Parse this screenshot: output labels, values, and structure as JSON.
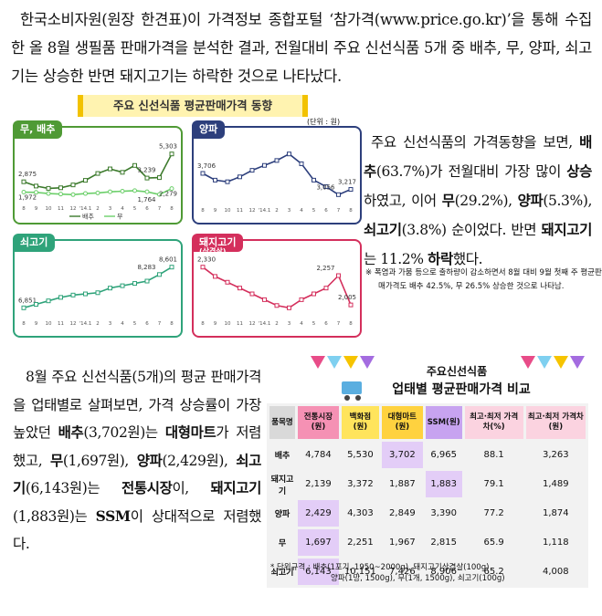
{
  "intro": "한국소비자원(원장 한견표)이 가격정보 종합포털 ‘참가격(www.price.go.kr)’을 통해 수집한 올 8월 생필품 판매가격을 분석한 결과, 전월대비 주요 신선식품 5개 중 배추, 무, 양파, 쇠고기는 상승한 반면 돼지고기는 하락한 것으로 나타났다.",
  "trend_panel": {
    "title": "주요 신선식품 평균판매가격 동향",
    "unit": "(단위 : 원)",
    "charts": [
      {
        "type": "line",
        "title": "무, 배추",
        "color": "#4f9a35",
        "legend": true,
        "categories": [
          "8",
          "9",
          "10",
          "11",
          "12",
          "'14.1",
          "2",
          "3",
          "4",
          "5",
          "6",
          "7",
          "8"
        ],
        "series": [
          {
            "name": "배추",
            "color": "#3c7a2c",
            "values": [
              2875,
              2500,
              2300,
              2350,
              2600,
              3000,
              3600,
              4000,
              3700,
              4300,
              3200,
              3239,
              5303
            ],
            "value_labels": [
              "2,875",
              null,
              null,
              null,
              null,
              null,
              null,
              null,
              null,
              null,
              null,
              "3,239",
              "5,303"
            ]
          },
          {
            "name": "무",
            "color": "#6ccf6a",
            "values": [
              1972,
              1950,
              1850,
              1800,
              1750,
              1850,
              1900,
              2000,
              2050,
              2100,
              2000,
              1764,
              2279
            ],
            "value_labels": [
              "1,972",
              null,
              null,
              null,
              null,
              null,
              null,
              null,
              null,
              null,
              null,
              "1,764",
              "2,279"
            ]
          }
        ]
      },
      {
        "type": "line",
        "title": "양파",
        "color": "#2d3f7c",
        "legend": false,
        "categories": [
          "8",
          "9",
          "10",
          "11",
          "12",
          "'14.1",
          "2",
          "3",
          "4",
          "5",
          "6",
          "7",
          "8"
        ],
        "series": [
          {
            "color": "#2d3f7c",
            "values": [
              3706,
              3500,
              3450,
              3600,
              3800,
              3950,
              4100,
              4300,
              4000,
              3500,
              3300,
              3056,
              3217
            ],
            "value_labels": [
              "3,706",
              null,
              null,
              null,
              null,
              null,
              null,
              null,
              null,
              null,
              null,
              "3,056",
              "3,217"
            ]
          }
        ]
      },
      {
        "type": "line",
        "title": "쇠고기",
        "color": "#2fa37a",
        "legend": false,
        "categories": [
          "8",
          "9",
          "10",
          "11",
          "12",
          "'14.1",
          "2",
          "3",
          "4",
          "5",
          "6",
          "7",
          "8"
        ],
        "series": [
          {
            "color": "#2fa37a",
            "values": [
              6851,
              7000,
              7150,
              7300,
              7400,
              7450,
              7500,
              7700,
              7800,
              7900,
              8000,
              8283,
              8601
            ],
            "value_labels": [
              "6,851",
              null,
              null,
              null,
              null,
              null,
              null,
              null,
              null,
              null,
              null,
              "8,283",
              "8,601"
            ]
          }
        ]
      },
      {
        "type": "line",
        "title": "돼지고기",
        "subtitle": "(삼겹살)",
        "color": "#d42f5c",
        "legend": false,
        "categories": [
          "8",
          "9",
          "10",
          "11",
          "12",
          "'14.1",
          "2",
          "3",
          "4",
          "5",
          "6",
          "7",
          "8"
        ],
        "series": [
          {
            "color": "#d42f5c",
            "values": [
              2330,
              2250,
              2200,
              2150,
              2100,
              2050,
              2000,
              1980,
              2050,
              2100,
              2150,
              2257,
              2005
            ],
            "value_labels": [
              "2,330",
              null,
              null,
              null,
              null,
              null,
              null,
              null,
              null,
              null,
              null,
              "2,257",
              "2,005"
            ]
          }
        ]
      }
    ]
  },
  "summary": {
    "runs": [
      {
        "text": "주요 신선식품의 가격동향을 보면, ",
        "bold": false
      },
      {
        "text": "배추",
        "bold": true
      },
      {
        "text": "(63.7%)가 전월대비 가장 많이 ",
        "bold": false
      },
      {
        "text": "상승",
        "bold": true
      },
      {
        "text": "하였고, 이어 ",
        "bold": false
      },
      {
        "text": "무",
        "bold": true
      },
      {
        "text": "(29.2%), ",
        "bold": false
      },
      {
        "text": "양파",
        "bold": true
      },
      {
        "text": "(5.3%), ",
        "bold": false
      },
      {
        "text": "쇠고기",
        "bold": true
      },
      {
        "text": "(3.8%) 순이었다. 반면 ",
        "bold": false
      },
      {
        "text": "돼지고기",
        "bold": true
      },
      {
        "text": "는 11.2% ",
        "bold": false
      },
      {
        "text": "하락",
        "bold": true
      },
      {
        "text": "했다.",
        "bold": false
      }
    ]
  },
  "note": "※ 폭염과 가뭄 등으로 출하량이 감소하면서 8월 대비 9월 첫째 주 평균판매가격도 배추 42.5%, 무 26.5% 상승한 것으로 나타남.",
  "channel_text": {
    "runs": [
      {
        "text": "8월 주요 신선식품(5개)의 평균 판매가격을 업태별로 살펴보면, 가격 상승률이 가장 높았던 ",
        "bold": false
      },
      {
        "text": "배추",
        "bold": true
      },
      {
        "text": "(3,702원)는 ",
        "bold": false
      },
      {
        "text": "대형마트",
        "bold": true
      },
      {
        "text": "가 저렴했고, ",
        "bold": false
      },
      {
        "text": "무",
        "bold": true
      },
      {
        "text": "(1,697원), ",
        "bold": false
      },
      {
        "text": "양파",
        "bold": true
      },
      {
        "text": "(2,429원), ",
        "bold": false
      },
      {
        "text": "쇠고기",
        "bold": true
      },
      {
        "text": "(6,143원)는 ",
        "bold": false
      },
      {
        "text": "전통시장",
        "bold": true
      },
      {
        "text": "이, ",
        "bold": false
      },
      {
        "text": "돼지고기",
        "bold": true
      },
      {
        "text": "(1,883원)는 ",
        "bold": false
      },
      {
        "text": "SSM",
        "bold": true
      },
      {
        "text": "이 상대적으로 저렴했다.",
        "bold": false
      }
    ]
  },
  "comparison": {
    "title_top": "주요신선식품",
    "title": "업태별 평균판매가격 비교",
    "columns": [
      {
        "text": "품목명",
        "color": "#d9d9d9"
      },
      {
        "text": "전통시장(원)",
        "color": "#f591b4"
      },
      {
        "text": "백화점(원)",
        "color": "#ffe45c"
      },
      {
        "text": "대형마트(원)",
        "color": "#ffd23f"
      },
      {
        "text": "SSM(원)",
        "color": "#c7a3f0"
      },
      {
        "text": "최고·최저 가격차(%)",
        "color": "#fbd3e0"
      },
      {
        "text": "최고·최저 가격차(원)",
        "color": "#fbd3e0"
      }
    ],
    "rows": [
      {
        "cells": [
          "배추",
          "4,784",
          "5,530",
          "3,702",
          "6,965",
          "88.1",
          "3,263"
        ],
        "highlight": [
          3
        ]
      },
      {
        "cells": [
          "돼지고기",
          "2,139",
          "3,372",
          "1,887",
          "1,883",
          "79.1",
          "1,489"
        ],
        "highlight": [
          4
        ]
      },
      {
        "cells": [
          "양파",
          "2,429",
          "4,303",
          "2,849",
          "3,390",
          "77.2",
          "1,874"
        ],
        "highlight": [
          1
        ]
      },
      {
        "cells": [
          "무",
          "1,697",
          "2,251",
          "1,967",
          "2,815",
          "65.9",
          "1,118"
        ],
        "highlight": [
          1
        ]
      },
      {
        "cells": [
          "쇠고기",
          "6,143",
          "10,151",
          "7,426",
          "8,906",
          "65.2",
          "4,008"
        ],
        "highlight": [
          1
        ]
      }
    ],
    "footnote": [
      "* 단위규격 : 배추(1포기, 1950~2000g), 돼지고기삼겹살(100g)",
      "양파(1망, 1500g), 무(1개, 1500g), 쇠고기(100g)"
    ]
  }
}
